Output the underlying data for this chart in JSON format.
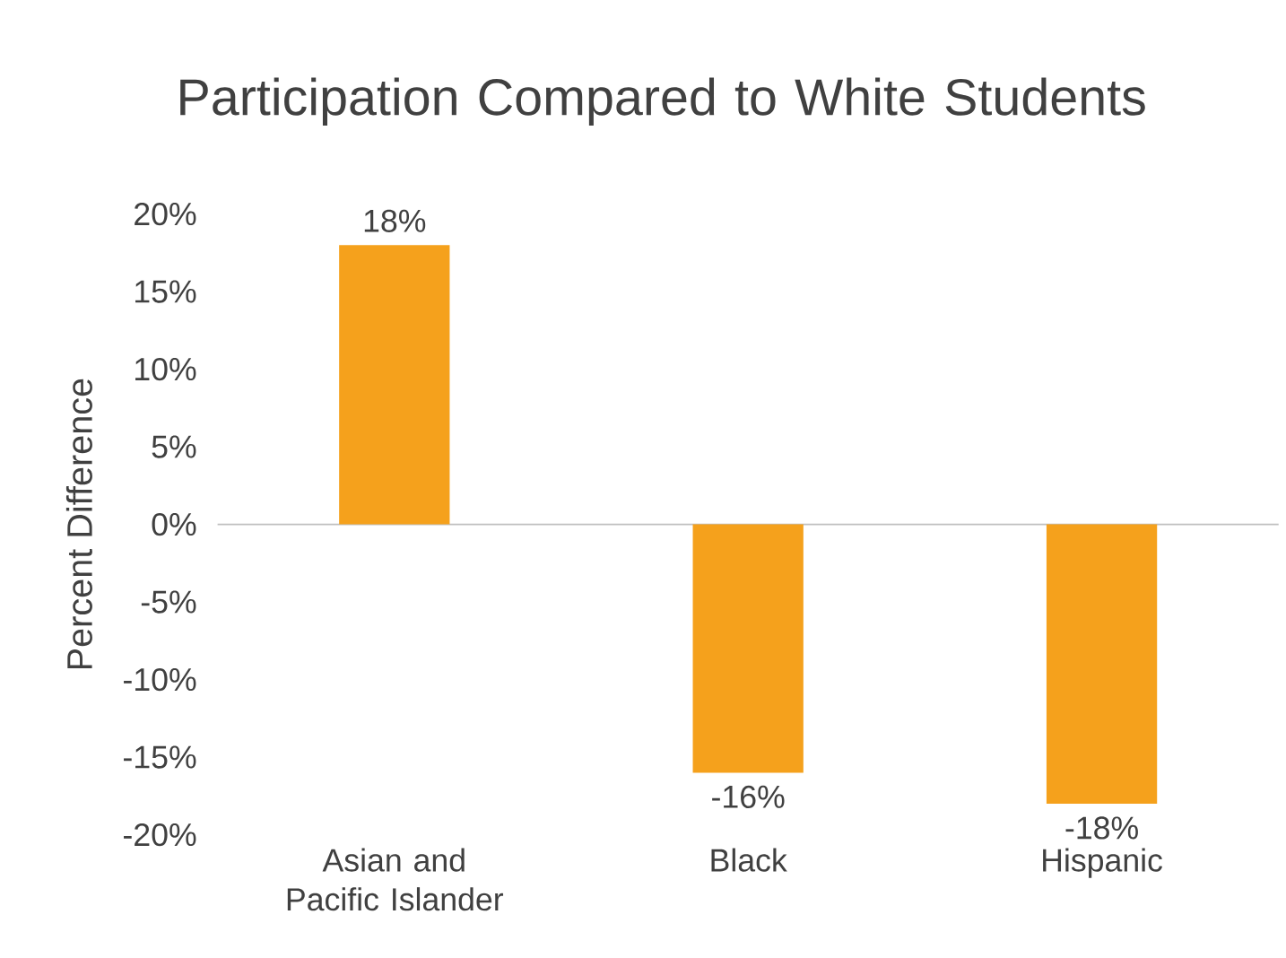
{
  "chart_data": {
    "type": "bar",
    "title": "Participation Compared to White Students",
    "ylabel": "Percent Difference",
    "categories": [
      "Asian and Pacific Islander",
      "Black",
      "Hispanic"
    ],
    "values": [
      18,
      -16,
      -18
    ],
    "value_labels": [
      "18%",
      "-16%",
      "-18%"
    ],
    "color": "#f5a11c",
    "ylim": [
      -20,
      20
    ],
    "yticks": [
      {
        "value": -20,
        "label": "-20%"
      },
      {
        "value": -15,
        "label": "-15%"
      },
      {
        "value": -10,
        "label": "-10%"
      },
      {
        "value": -5,
        "label": "-5%"
      },
      {
        "value": 0,
        "label": "0%"
      },
      {
        "value": 5,
        "label": "5%"
      },
      {
        "value": 10,
        "label": "10%"
      },
      {
        "value": 15,
        "label": "15%"
      },
      {
        "value": 20,
        "label": "20%"
      }
    ],
    "tick_labels": "xy"
  }
}
